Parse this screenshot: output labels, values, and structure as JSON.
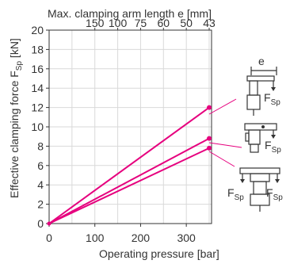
{
  "chart_data": {
    "type": "line",
    "xlabel": "Operating pressure [bar]",
    "ylabel": "Effective clamping force F",
    "ylabel_sub": "Sp",
    "ylabel_unit": " [kN]",
    "top_axis_label": "Max. clamping arm length e [mm]",
    "xlim": [
      0,
      350
    ],
    "ylim": [
      0,
      20
    ],
    "x_ticks": [
      0,
      100,
      200,
      300
    ],
    "y_ticks": [
      0,
      2,
      4,
      6,
      8,
      10,
      12,
      14,
      16,
      18,
      20
    ],
    "top_ticks": [
      {
        "label": "150",
        "x": 100
      },
      {
        "label": "100",
        "x": 150
      },
      {
        "label": "75",
        "x": 200
      },
      {
        "label": "60",
        "x": 250
      },
      {
        "label": "50",
        "x": 300
      },
      {
        "label": "43",
        "x": 350
      }
    ],
    "grid": true,
    "series": [
      {
        "x": [
          0,
          350
        ],
        "y": [
          0,
          12
        ]
      },
      {
        "x": [
          0,
          350
        ],
        "y": [
          0,
          8.8
        ]
      },
      {
        "x": [
          0,
          350
        ],
        "y": [
          0,
          7.8
        ]
      }
    ],
    "series_color": "#e6007e",
    "icons": {
      "dimension_label": "e",
      "force_label": "F",
      "force_sub": "Sp"
    }
  }
}
